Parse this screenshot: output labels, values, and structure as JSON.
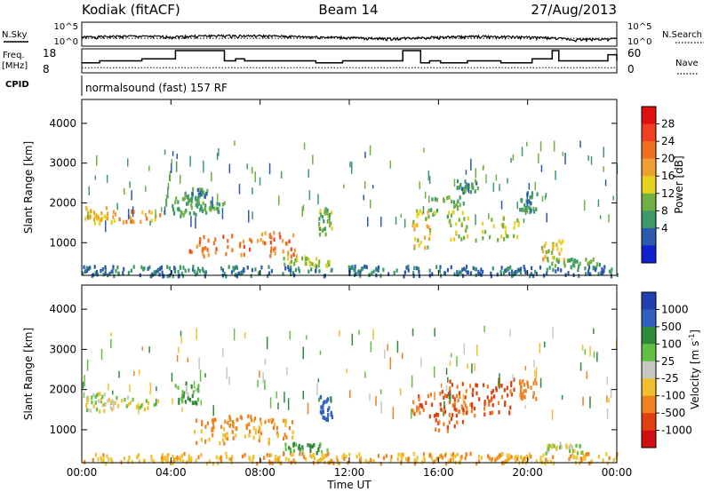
{
  "header": {
    "station": "Kodiak (fitACF)",
    "beam": "Beam 14",
    "date": "27/Aug/2013"
  },
  "summary": {
    "nsky_label": "N.Sky",
    "nsearch_label": "N.Search",
    "freq_label_1": "Freq.",
    "freq_label_2": "[MHz]",
    "nave_label": "Nave",
    "cpid_label": "CPID",
    "cpid_text": "normalsound (fast) 157 RF",
    "noise_ticks": [
      "10^5",
      "10^0"
    ],
    "freq_ticks": [
      "18",
      "8"
    ],
    "nave_ticks": [
      "60",
      "0"
    ]
  },
  "axes": {
    "xlabel": "Time UT",
    "ylabel": "Slant Range [km]",
    "xticks": [
      "00:00",
      "04:00",
      "08:00",
      "12:00",
      "16:00",
      "20:00",
      "00:00"
    ],
    "yticks": [
      "4000",
      "3000",
      "2000",
      "1000"
    ]
  },
  "colorbars": {
    "power": {
      "label": "Power [dB]",
      "ticks": [
        "28",
        "24",
        "20",
        "16",
        "12",
        "8",
        "4"
      ],
      "colors": [
        "#e01010",
        "#f04020",
        "#f07020",
        "#f0a030",
        "#e8d020",
        "#70b040",
        "#3c9a6a",
        "#2a5ab0",
        "#1020d0"
      ]
    },
    "velocity": {
      "label": "Velocity [m s",
      "label_sup": "-1",
      "label_end": "]",
      "ticks": [
        "1000",
        "500",
        "100",
        "25",
        "-25",
        "-100",
        "-500",
        "-1000"
      ],
      "colors": [
        "#2040b0",
        "#3060c0",
        "#2e8a3a",
        "#60c040",
        "#c8c8c0",
        "#f0c030",
        "#f08020",
        "#e04010",
        "#d01010"
      ]
    }
  },
  "chart_data": [
    {
      "type": "line",
      "x_range_hours": [
        0,
        24
      ],
      "y_scale": "log",
      "series": [
        {
          "name": "N.Sky",
          "style": "solid",
          "x": [
            0,
            2,
            4,
            6,
            8,
            10,
            12,
            14,
            16,
            18,
            20,
            22,
            24
          ],
          "values": [
            30,
            60,
            40,
            80,
            70,
            40,
            20,
            10,
            30,
            50,
            30,
            5,
            10
          ]
        },
        {
          "name": "N.Search",
          "style": "dotted",
          "x": [
            0,
            6,
            12,
            18,
            24
          ],
          "values": [
            20,
            20,
            20,
            20,
            20
          ]
        }
      ]
    },
    {
      "type": "line",
      "x_range_hours": [
        0,
        24
      ],
      "series": [
        {
          "name": "Freq. [MHz]",
          "style": "step",
          "x": [
            0,
            0.6,
            0.8,
            2.3,
            2.7,
            3.8,
            4.2,
            6.1,
            6.4,
            6.9,
            7.3,
            8.4,
            8.8,
            10.1,
            10.5,
            11.3,
            11.7,
            12.8,
            13.2,
            14.4,
            15.2,
            15.6,
            16.1,
            16.9,
            17.3,
            18.3,
            18.8,
            19.9,
            20.2,
            21.1,
            21.4,
            22.4,
            22.9,
            23.6,
            24
          ],
          "values": [
            12,
            12,
            13,
            13,
            14,
            14,
            18,
            18,
            13,
            14,
            13,
            13,
            13,
            13,
            12,
            12,
            13,
            13,
            13,
            18,
            12,
            13,
            12,
            12,
            13,
            13,
            12,
            12,
            14,
            18,
            13,
            13,
            13,
            16,
            13
          ]
        },
        {
          "name": "Nave",
          "style": "dotted",
          "x": [
            0,
            24
          ],
          "values": [
            10,
            10
          ]
        }
      ]
    },
    {
      "type": "heatmap",
      "title": "Power [dB]",
      "xlabel": "Time UT",
      "ylabel": "Slant Range [km]",
      "x_range_hours": [
        0,
        24
      ],
      "y_range_km": [
        180,
        4600
      ],
      "color_range_db": [
        0,
        32
      ],
      "regions": [
        {
          "t": [
            0.1,
            1.1
          ],
          "r": [
            1500,
            1950
          ],
          "value": 18
        },
        {
          "t": [
            1.1,
            3.5
          ],
          "r": [
            1550,
            1850
          ],
          "value": 20
        },
        {
          "t": [
            4.0,
            5.2
          ],
          "r": [
            1700,
            2200
          ],
          "value": 10
        },
        {
          "t": [
            4.6,
            5.6
          ],
          "r": [
            2100,
            2400
          ],
          "value": 8
        },
        {
          "t": [
            5.2,
            6.4
          ],
          "r": [
            1800,
            2100
          ],
          "value": 10
        },
        {
          "t": [
            4.8,
            9.6
          ],
          "r": [
            700,
            1300
          ],
          "value": 24
        },
        {
          "t": [
            9.0,
            11.1
          ],
          "r": [
            450,
            700
          ],
          "value": 14
        },
        {
          "t": [
            10.6,
            11.2
          ],
          "r": [
            1250,
            1900
          ],
          "value": 12
        },
        {
          "t": [
            14.8,
            15.6
          ],
          "r": [
            900,
            1900
          ],
          "value": 16
        },
        {
          "t": [
            15.6,
            17.2
          ],
          "r": [
            1700,
            2200
          ],
          "value": 12
        },
        {
          "t": [
            16.4,
            19.6
          ],
          "r": [
            1100,
            1700
          ],
          "value": 14
        },
        {
          "t": [
            16.8,
            17.8
          ],
          "r": [
            2300,
            2600
          ],
          "value": 8
        },
        {
          "t": [
            19.6,
            20.4
          ],
          "r": [
            1800,
            2300
          ],
          "value": 8
        },
        {
          "t": [
            20.6,
            21.6
          ],
          "r": [
            600,
            1100
          ],
          "value": 16
        },
        {
          "t": [
            21.0,
            23.2
          ],
          "r": [
            450,
            650
          ],
          "value": 10
        },
        {
          "t": [
            0.0,
            24.0
          ],
          "r": [
            200,
            450
          ],
          "value": 6
        }
      ]
    },
    {
      "type": "heatmap",
      "title": "Velocity [m s-1]",
      "xlabel": "Time UT",
      "ylabel": "Slant Range [km]",
      "x_range_hours": [
        0,
        24
      ],
      "y_range_km": [
        180,
        4600
      ],
      "color_range": [
        -1000,
        1000
      ],
      "regions": [
        {
          "t": [
            0.1,
            1.1
          ],
          "r": [
            1500,
            1950
          ],
          "value": 0
        },
        {
          "t": [
            1.1,
            3.5
          ],
          "r": [
            1550,
            1850
          ],
          "value": 0
        },
        {
          "t": [
            4.0,
            5.2
          ],
          "r": [
            1700,
            2200
          ],
          "value": 60
        },
        {
          "t": [
            4.8,
            9.6
          ],
          "r": [
            700,
            1300
          ],
          "value": -60
        },
        {
          "t": [
            5.5,
            8.0
          ],
          "r": [
            1000,
            1400
          ],
          "value": -150
        },
        {
          "t": [
            9.0,
            11.1
          ],
          "r": [
            450,
            700
          ],
          "value": 80
        },
        {
          "t": [
            10.6,
            11.2
          ],
          "r": [
            1250,
            1900
          ],
          "value": 400
        },
        {
          "t": [
            14.8,
            17.3
          ],
          "r": [
            1000,
            2000
          ],
          "value": -300
        },
        {
          "t": [
            16.0,
            19.5
          ],
          "r": [
            1400,
            2300
          ],
          "value": -300
        },
        {
          "t": [
            19.6,
            20.4
          ],
          "r": [
            1800,
            2300
          ],
          "value": -200
        },
        {
          "t": [
            20.6,
            22.5
          ],
          "r": [
            450,
            700
          ],
          "value": 0
        },
        {
          "t": [
            0.0,
            24.0
          ],
          "r": [
            200,
            450
          ],
          "value": -50
        }
      ]
    }
  ]
}
